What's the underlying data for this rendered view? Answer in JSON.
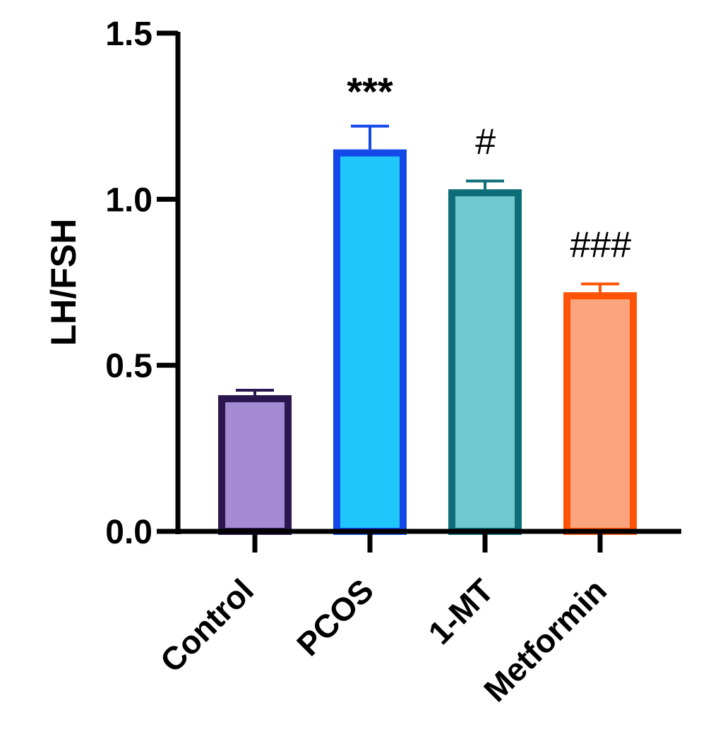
{
  "chart_data": {
    "type": "bar",
    "title": "",
    "xlabel": "",
    "ylabel": "LH/FSH",
    "ylim": [
      0,
      1.5
    ],
    "yticks": [
      0.0,
      0.5,
      1.0,
      1.5
    ],
    "ytick_labels": [
      "0.0",
      "0.5",
      "1.0",
      "1.5"
    ],
    "grid": false,
    "legend": null,
    "categories": [
      "Control",
      "PCOS",
      "1-MT",
      "Metformin"
    ],
    "values": [
      0.41,
      1.15,
      1.03,
      0.72
    ],
    "error_bars": [
      0.015,
      0.07,
      0.025,
      0.025
    ],
    "annotations": [
      "",
      "***",
      "#",
      "###"
    ],
    "colors": {
      "fill": [
        "#A48BD4",
        "#1EC6FC",
        "#71C9D0",
        "#F9A47C"
      ],
      "border": [
        "#2B1650",
        "#1448E8",
        "#0D6D78",
        "#FF5408"
      ]
    }
  }
}
